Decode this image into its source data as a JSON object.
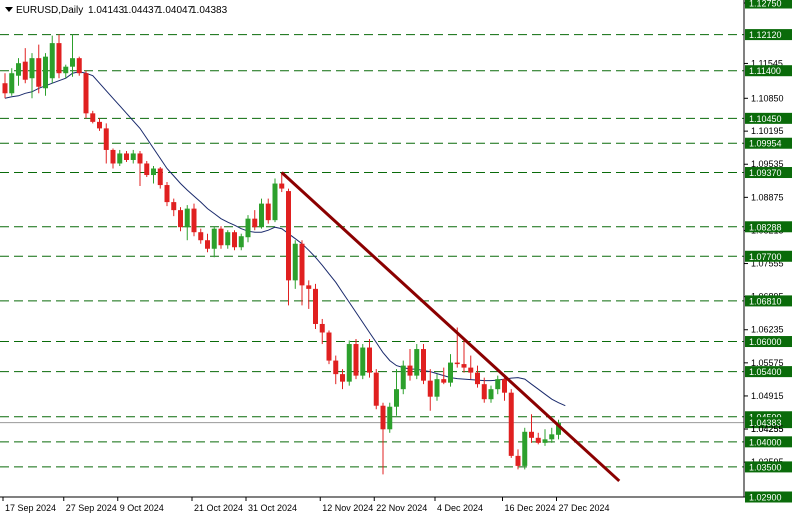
{
  "header": {
    "symbol": "EURUSD,Daily",
    "open": "1.04143",
    "high": "1.04437",
    "low": "1.04047",
    "close": "1.04383"
  },
  "colors": {
    "bull": "#2ca02c",
    "bear": "#e02020",
    "level_line": "#0a6b0a",
    "trendline": "#8b0000",
    "ma": "#1a2a6c",
    "label_bg": "#0a6b0a",
    "current_bg": "#0a6b0a",
    "current_line": "#9a9a9a"
  },
  "chart_data": {
    "type": "candlestick",
    "title": "EURUSD,Daily",
    "ylim": [
      1.029,
      1.1275
    ],
    "y_ticks": [
      "1.12750",
      "1.11545",
      "1.10850",
      "1.10195",
      "1.09535",
      "1.08875",
      "1.08215",
      "1.07555",
      "1.06895",
      "1.06235",
      "1.05575",
      "1.04915",
      "1.04255",
      "1.03595",
      "1.02900"
    ],
    "x_labels": [
      "17 Sep 2024",
      "27 Sep 2024",
      "9 Oct 2024",
      "21 Oct 2024",
      "31 Oct 2024",
      "12 Nov 2024",
      "22 Nov 2024",
      "4 Dec 2024",
      "16 Dec 2024",
      "27 Dec 2024"
    ],
    "levels": [
      "1.12120",
      "1.11400",
      "1.10450",
      "1.09954",
      "1.09370",
      "1.08288",
      "1.07700",
      "1.06810",
      "1.06000",
      "1.05400",
      "1.04500",
      "1.04000",
      "1.03500"
    ],
    "current_price": "1.04383",
    "current_price_sub": "1.04255",
    "trendline": {
      "from": [
        41,
        1.0937
      ],
      "to": [
        91,
        1.0322
      ]
    },
    "moving_average": [
      1.1085,
      1.1088,
      1.109,
      1.1095,
      1.1098,
      1.1105,
      1.111,
      1.1115,
      1.112,
      1.1125,
      1.1135,
      1.1138,
      1.1135,
      1.113,
      1.1115,
      1.11,
      1.1085,
      1.107,
      1.1055,
      1.104,
      1.1025,
      1.1005,
      1.0985,
      1.0965,
      1.0945,
      1.093,
      1.0915,
      1.0902,
      1.089,
      1.0878,
      1.0865,
      1.0855,
      1.0845,
      1.0838,
      1.0832,
      1.0825,
      1.082,
      1.0818,
      1.0818,
      1.0822,
      1.0828,
      1.0825,
      1.0815,
      1.0805,
      1.0795,
      1.0782,
      1.0768,
      1.0752,
      1.0735,
      1.0718,
      1.0698,
      1.0678,
      1.0658,
      1.0638,
      1.0618,
      1.0598,
      1.0578,
      1.0562,
      1.0552,
      1.0548,
      1.0545,
      1.0545,
      1.0542,
      1.054,
      1.0536,
      1.0532,
      1.0528,
      1.0526,
      1.0525,
      1.0524,
      1.0523,
      1.0522,
      1.0522,
      1.0523,
      1.0525,
      1.0527,
      1.0528,
      1.0525,
      1.0515,
      1.0505,
      1.0495,
      1.0485,
      1.0478,
      1.0472
    ],
    "candles": [
      {
        "o": 1.1115,
        "h": 1.1135,
        "l": 1.1085,
        "c": 1.1095
      },
      {
        "o": 1.1095,
        "h": 1.1145,
        "l": 1.109,
        "c": 1.1135
      },
      {
        "o": 1.113,
        "h": 1.1165,
        "l": 1.111,
        "c": 1.1155
      },
      {
        "o": 1.1158,
        "h": 1.1185,
        "l": 1.1115,
        "c": 1.1122
      },
      {
        "o": 1.1125,
        "h": 1.1175,
        "l": 1.1085,
        "c": 1.1165
      },
      {
        "o": 1.1165,
        "h": 1.1192,
        "l": 1.1095,
        "c": 1.1108
      },
      {
        "o": 1.1105,
        "h": 1.1175,
        "l": 1.109,
        "c": 1.1168
      },
      {
        "o": 1.1125,
        "h": 1.121,
        "l": 1.1115,
        "c": 1.1195
      },
      {
        "o": 1.1195,
        "h": 1.1212,
        "l": 1.1125,
        "c": 1.1135
      },
      {
        "o": 1.1135,
        "h": 1.1152,
        "l": 1.1125,
        "c": 1.1148
      },
      {
        "o": 1.1148,
        "h": 1.1212,
        "l": 1.1128,
        "c": 1.1165
      },
      {
        "o": 1.1165,
        "h": 1.1168,
        "l": 1.113,
        "c": 1.1135
      },
      {
        "o": 1.1135,
        "h": 1.114,
        "l": 1.1045,
        "c": 1.1055
      },
      {
        "o": 1.1055,
        "h": 1.106,
        "l": 1.1035,
        "c": 1.1038
      },
      {
        "o": 1.1038,
        "h": 1.1045,
        "l": 1.102,
        "c": 1.1025
      },
      {
        "o": 1.1025,
        "h": 1.1035,
        "l": 1.0955,
        "c": 1.0982
      },
      {
        "o": 1.0982,
        "h": 1.0985,
        "l": 1.0945,
        "c": 1.0955
      },
      {
        "o": 1.0955,
        "h": 1.0982,
        "l": 1.095,
        "c": 1.0975
      },
      {
        "o": 1.0975,
        "h": 1.098,
        "l": 1.0958,
        "c": 1.0962
      },
      {
        "o": 1.0962,
        "h": 1.0982,
        "l": 1.0955,
        "c": 1.0975
      },
      {
        "o": 1.0975,
        "h": 1.098,
        "l": 1.091,
        "c": 1.0955
      },
      {
        "o": 1.0955,
        "h": 1.096,
        "l": 1.0928,
        "c": 1.0932
      },
      {
        "o": 1.0932,
        "h": 1.095,
        "l": 1.0915,
        "c": 1.0945
      },
      {
        "o": 1.0945,
        "h": 1.0948,
        "l": 1.0905,
        "c": 1.0912
      },
      {
        "o": 1.0912,
        "h": 1.0918,
        "l": 1.087,
        "c": 1.0878
      },
      {
        "o": 1.0878,
        "h": 1.0885,
        "l": 1.085,
        "c": 1.0862
      },
      {
        "o": 1.0862,
        "h": 1.0868,
        "l": 1.082,
        "c": 1.0828
      },
      {
        "o": 1.0828,
        "h": 1.0872,
        "l": 1.0802,
        "c": 1.0865
      },
      {
        "o": 1.0865,
        "h": 1.0875,
        "l": 1.081,
        "c": 1.0818
      },
      {
        "o": 1.0818,
        "h": 1.0825,
        "l": 1.0795,
        "c": 1.0802
      },
      {
        "o": 1.0802,
        "h": 1.0815,
        "l": 1.0778,
        "c": 1.0785
      },
      {
        "o": 1.0785,
        "h": 1.083,
        "l": 1.0768,
        "c": 1.0825
      },
      {
        "o": 1.0825,
        "h": 1.083,
        "l": 1.0785,
        "c": 1.0792
      },
      {
        "o": 1.0792,
        "h": 1.0822,
        "l": 1.0785,
        "c": 1.0818
      },
      {
        "o": 1.0818,
        "h": 1.0822,
        "l": 1.0782,
        "c": 1.0788
      },
      {
        "o": 1.0788,
        "h": 1.0815,
        "l": 1.0782,
        "c": 1.081
      },
      {
        "o": 1.0808,
        "h": 1.0852,
        "l": 1.0798,
        "c": 1.0845
      },
      {
        "o": 1.0845,
        "h": 1.0862,
        "l": 1.0822,
        "c": 1.0828
      },
      {
        "o": 1.0828,
        "h": 1.0885,
        "l": 1.0825,
        "c": 1.0875
      },
      {
        "o": 1.0875,
        "h": 1.0885,
        "l": 1.0835,
        "c": 1.0842
      },
      {
        "o": 1.0842,
        "h": 1.0925,
        "l": 1.0838,
        "c": 1.0915
      },
      {
        "o": 1.0915,
        "h": 1.0937,
        "l": 1.0898,
        "c": 1.0905
      },
      {
        "o": 1.09,
        "h": 1.0905,
        "l": 1.0672,
        "c": 1.0722
      },
      {
        "o": 1.0722,
        "h": 1.0802,
        "l": 1.0705,
        "c": 1.0795
      },
      {
        "o": 1.0795,
        "h": 1.0802,
        "l": 1.0672,
        "c": 1.0712
      },
      {
        "o": 1.0712,
        "h": 1.0722,
        "l": 1.0665,
        "c": 1.0705
      },
      {
        "o": 1.0705,
        "h": 1.0715,
        "l": 1.0625,
        "c": 1.0635
      },
      {
        "o": 1.0635,
        "h": 1.0645,
        "l": 1.0595,
        "c": 1.0618
      },
      {
        "o": 1.0618,
        "h": 1.0622,
        "l": 1.0555,
        "c": 1.0562
      },
      {
        "o": 1.0562,
        "h": 1.0572,
        "l": 1.0515,
        "c": 1.0535
      },
      {
        "o": 1.0535,
        "h": 1.0545,
        "l": 1.0505,
        "c": 1.052
      },
      {
        "o": 1.052,
        "h": 1.0602,
        "l": 1.0512,
        "c": 1.0595
      },
      {
        "o": 1.0595,
        "h": 1.0605,
        "l": 1.0525,
        "c": 1.0532
      },
      {
        "o": 1.0532,
        "h": 1.0595,
        "l": 1.0525,
        "c": 1.0588
      },
      {
        "o": 1.0588,
        "h": 1.0605,
        "l": 1.0528,
        "c": 1.0538
      },
      {
        "o": 1.0538,
        "h": 1.0545,
        "l": 1.0465,
        "c": 1.0472
      },
      {
        "o": 1.0472,
        "h": 1.0478,
        "l": 1.0335,
        "c": 1.0425
      },
      {
        "o": 1.0425,
        "h": 1.0478,
        "l": 1.0418,
        "c": 1.047
      },
      {
        "o": 1.047,
        "h": 1.0545,
        "l": 1.0452,
        "c": 1.0505
      },
      {
        "o": 1.0505,
        "h": 1.0562,
        "l": 1.0495,
        "c": 1.0552
      },
      {
        "o": 1.0552,
        "h": 1.0585,
        "l": 1.0522,
        "c": 1.0532
      },
      {
        "o": 1.0532,
        "h": 1.0595,
        "l": 1.0525,
        "c": 1.0585
      },
      {
        "o": 1.0585,
        "h": 1.0595,
        "l": 1.0515,
        "c": 1.0522
      },
      {
        "o": 1.0522,
        "h": 1.0545,
        "l": 1.0462,
        "c": 1.049
      },
      {
        "o": 1.049,
        "h": 1.0535,
        "l": 1.0482,
        "c": 1.0525
      },
      {
        "o": 1.0525,
        "h": 1.0548,
        "l": 1.0515,
        "c": 1.0518
      },
      {
        "o": 1.0518,
        "h": 1.0575,
        "l": 1.051,
        "c": 1.0558
      },
      {
        "o": 1.0558,
        "h": 1.0628,
        "l": 1.0548,
        "c": 1.0555
      },
      {
        "o": 1.0555,
        "h": 1.0602,
        "l": 1.0538,
        "c": 1.0548
      },
      {
        "o": 1.0548,
        "h": 1.0572,
        "l": 1.0525,
        "c": 1.0538
      },
      {
        "o": 1.0538,
        "h": 1.0552,
        "l": 1.0508,
        "c": 1.0515
      },
      {
        "o": 1.0515,
        "h": 1.0528,
        "l": 1.0478,
        "c": 1.0485
      },
      {
        "o": 1.0485,
        "h": 1.0512,
        "l": 1.0478,
        "c": 1.0505
      },
      {
        "o": 1.0505,
        "h": 1.0532,
        "l": 1.0495,
        "c": 1.0525
      },
      {
        "o": 1.0525,
        "h": 1.0532,
        "l": 1.0482,
        "c": 1.0498
      },
      {
        "o": 1.0498,
        "h": 1.0505,
        "l": 1.0368,
        "c": 1.0372
      },
      {
        "o": 1.0372,
        "h": 1.0385,
        "l": 1.0345,
        "c": 1.0352
      },
      {
        "o": 1.0352,
        "h": 1.0428,
        "l": 1.0345,
        "c": 1.042
      },
      {
        "o": 1.042,
        "h": 1.0455,
        "l": 1.0398,
        "c": 1.0408
      },
      {
        "o": 1.0408,
        "h": 1.0418,
        "l": 1.0395,
        "c": 1.0398
      },
      {
        "o": 1.0398,
        "h": 1.0425,
        "l": 1.0392,
        "c": 1.0405
      },
      {
        "o": 1.0405,
        "h": 1.0428,
        "l": 1.0398,
        "c": 1.0415
      },
      {
        "o": 1.0414,
        "h": 1.0444,
        "l": 1.0405,
        "c": 1.0438
      }
    ]
  }
}
